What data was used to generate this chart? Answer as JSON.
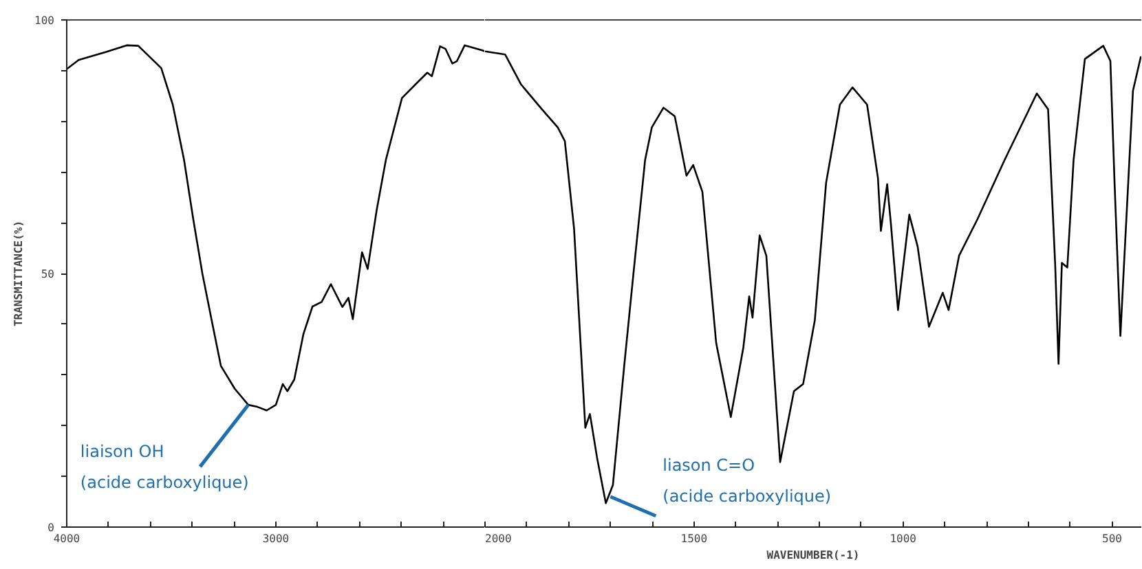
{
  "chart_data": [
    {
      "type": "line",
      "ylabel": "TRANSMITTANCE(%)",
      "xlim": [
        4000,
        2000
      ],
      "ylim": [
        0,
        100
      ],
      "xticks": [
        4000,
        {
          "value": 3800,
          "label": null
        },
        {
          "value": 3600,
          "label": null
        },
        {
          "value": 3400,
          "label": null
        },
        {
          "value": 3200,
          "label": null
        },
        3000,
        {
          "value": 2800,
          "label": null
        },
        {
          "value": 2600,
          "label": null
        },
        {
          "value": 2400,
          "label": null
        },
        {
          "value": 2200,
          "label": null
        }
      ],
      "yticks": [
        0,
        {
          "value": 10,
          "label": null
        },
        {
          "value": 20,
          "label": null
        },
        {
          "value": 30,
          "label": null
        },
        {
          "value": 40,
          "label": null
        },
        50,
        {
          "value": 60,
          "label": null
        },
        {
          "value": 70,
          "label": null
        },
        {
          "value": 80,
          "label": null
        },
        {
          "value": 90,
          "label": null
        },
        100
      ],
      "grid": false,
      "marker": "none",
      "line_style": "solid",
      "x": [
        4000,
        3943,
        3811,
        3713,
        3658,
        3548,
        3493,
        3439,
        3395,
        3351,
        3307,
        3263,
        3197,
        3132,
        3088,
        3044,
        3000,
        2967,
        2945,
        2912,
        2868,
        2825,
        2781,
        2737,
        2682,
        2653,
        2632,
        2588,
        2561,
        2518,
        2474,
        2397,
        2320,
        2276,
        2254,
        2215,
        2189,
        2156,
        2134,
        2097,
        2013,
        2000
      ],
      "series": [
        {
          "color": "#000000",
          "values": [
            90.3,
            92.1,
            93.7,
            95.0,
            94.9,
            90.5,
            83.3,
            72.4,
            60.7,
            49.9,
            40.8,
            31.8,
            27.3,
            24.1,
            23.7,
            23.0,
            24.1,
            28.2,
            26.8,
            29.1,
            38.1,
            43.5,
            44.4,
            47.9,
            43.4,
            45.2,
            41.0,
            54.2,
            50.9,
            62.5,
            72.4,
            84.6,
            87.8,
            89.6,
            88.9,
            94.8,
            94.3,
            91.4,
            91.9,
            95.0,
            94.0,
            93.8
          ]
        }
      ],
      "annotations": [
        {
          "text": "liaison OH\n(acide carboxylique)",
          "x": 3132,
          "y": 24.1
        }
      ]
    },
    {
      "type": "line",
      "xlabel": "WAVENUMBER(-1)",
      "xlim": [
        2000,
        430
      ],
      "ylim": [
        0,
        100
      ],
      "tick_labels": "x",
      "xticks": [
        2000,
        {
          "value": 1900,
          "label": null
        },
        {
          "value": 1800,
          "label": null
        },
        {
          "value": 1700,
          "label": null
        },
        {
          "value": 1600,
          "label": null
        },
        1500,
        {
          "value": 1400,
          "label": null
        },
        {
          "value": 1300,
          "label": null
        },
        {
          "value": 1200,
          "label": null
        },
        {
          "value": 1100,
          "label": null
        },
        1000,
        {
          "value": 900,
          "label": null
        },
        {
          "value": 800,
          "label": null
        },
        {
          "value": 700,
          "label": null
        },
        {
          "value": 600,
          "label": null
        },
        500
      ],
      "grid": false,
      "marker": "none",
      "line_style": "solid",
      "x": [
        2000,
        1952,
        1914,
        1864,
        1826,
        1809,
        1787,
        1760,
        1749,
        1732,
        1711,
        1694,
        1667,
        1645,
        1617,
        1601,
        1573,
        1546,
        1518,
        1502,
        1480,
        1447,
        1412,
        1382,
        1368,
        1360,
        1343,
        1327,
        1294,
        1261,
        1239,
        1211,
        1184,
        1151,
        1121,
        1086,
        1060,
        1053,
        1038,
        1029,
        1012,
        985,
        965,
        938,
        905,
        891,
        866,
        822,
        757,
        680,
        653,
        636,
        628,
        620,
        607,
        592,
        565,
        521,
        504,
        494,
        480,
        472,
        450,
        431
      ],
      "series": [
        {
          "color": "#000000",
          "values": [
            93.8,
            93.2,
            87.3,
            82.4,
            78.8,
            76.1,
            58.9,
            19.6,
            22.3,
            13.7,
            4.7,
            8.3,
            31.8,
            49.9,
            72.4,
            78.8,
            82.7,
            81.0,
            69.3,
            71.4,
            66.1,
            36.3,
            21.7,
            35.4,
            45.5,
            41.3,
            57.5,
            53.5,
            12.8,
            26.8,
            28.2,
            40.8,
            67.9,
            83.3,
            86.7,
            83.3,
            68.8,
            58.4,
            67.6,
            59.8,
            42.8,
            61.6,
            55.3,
            39.5,
            46.2,
            42.8,
            53.5,
            60.7,
            72.4,
            85.5,
            82.4,
            51.7,
            32.2,
            52.1,
            51.2,
            72.4,
            92.3,
            94.9,
            91.9,
            67.9,
            37.7,
            50.8,
            86.0,
            92.8
          ]
        }
      ],
      "annotations": [
        {
          "text": "liason C=O\n(acide carboxylique)",
          "x": 1700,
          "y": 6
        }
      ]
    }
  ]
}
